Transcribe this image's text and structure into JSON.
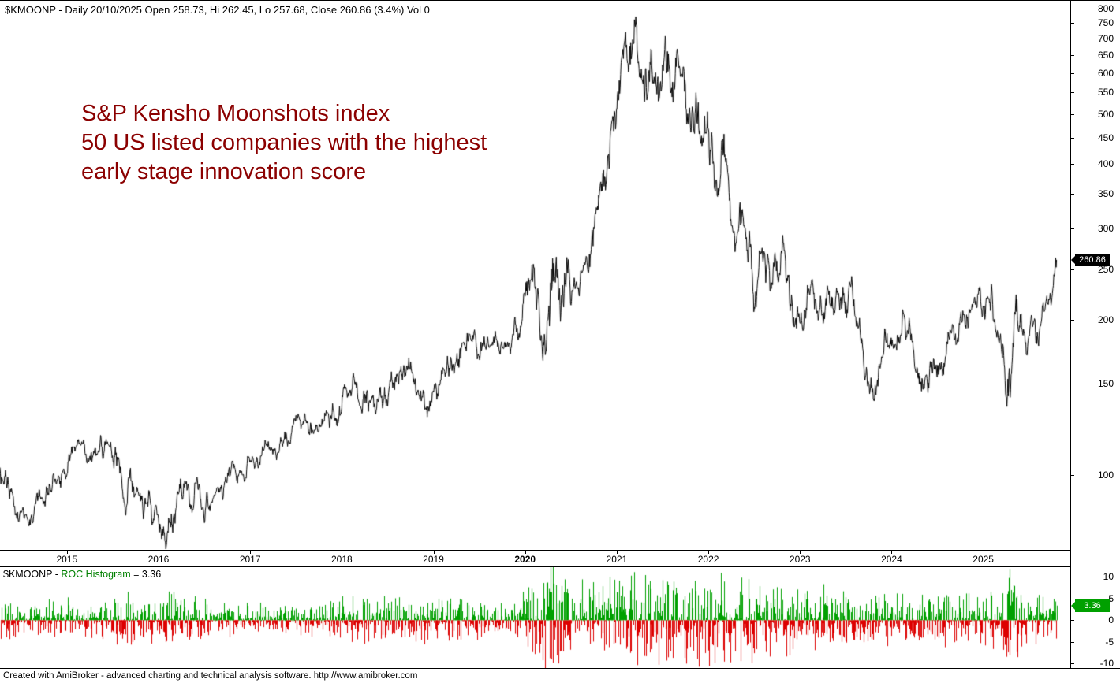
{
  "colors": {
    "line": "#000000",
    "annotation": "#8b0000",
    "roc_up": "#00a000",
    "roc_down": "#dd0000",
    "indicator_label_green": "#008000",
    "price_marker_bg": "#000000",
    "roc_marker_bg": "#00a000",
    "marker_text": "#ffffff"
  },
  "title_bar": {
    "text": "$KMOONP - Daily 20/10/2025 Open 258.73, Hi 262.45, Lo 257.68, Close 260.86 (3.4%) Vol 0"
  },
  "annotation": {
    "lines": [
      "S&P Kensho Moonshots index",
      "50 US listed companies with the highest",
      "early stage innovation score"
    ]
  },
  "price_axis": {
    "last_price_label": "260.86"
  },
  "roc_panel": {
    "title": {
      "symbol": "$KMOONP",
      "sep": " - ",
      "indicator": "ROC Histogram",
      "eq": " = ",
      "value": "3.36"
    },
    "marker_label": "3.36"
  },
  "status_bar": {
    "text": "Created with AmiBroker - advanced charting and technical analysis software. http://www.amibroker.com"
  },
  "chart_data": [
    {
      "type": "line",
      "symbol": "$KMOONP",
      "timeframe": "Daily",
      "date": "20/10/2025",
      "ohlc": {
        "open": 258.73,
        "high": 262.45,
        "low": 257.68,
        "close": 260.86,
        "change_pct": 3.4,
        "volume": 0
      },
      "yscale": "log",
      "ylim_log": [
        71.6,
        828
      ],
      "y_ticks": [
        800,
        750,
        700,
        650,
        600,
        550,
        500,
        450,
        400,
        350,
        300,
        250,
        200,
        150,
        100
      ],
      "x_ticks": [
        2015,
        2016,
        2017,
        2018,
        2019,
        2020,
        2021,
        2022,
        2023,
        2024,
        2025
      ],
      "x_bold_tick": 2020,
      "t_start": 2014.27,
      "t_end": 2025.8,
      "t_axis_end": 2025.95,
      "points": 2300,
      "last_price": 260.86,
      "grid": false,
      "legend": false,
      "series_keypoints": [
        [
          2014.27,
          100
        ],
        [
          2014.45,
          88
        ],
        [
          2014.57,
          83
        ],
        [
          2014.7,
          93
        ],
        [
          2014.85,
          97
        ],
        [
          2015.0,
          108
        ],
        [
          2015.17,
          117
        ],
        [
          2015.3,
          110
        ],
        [
          2015.45,
          112
        ],
        [
          2015.55,
          104
        ],
        [
          2015.64,
          88
        ],
        [
          2015.72,
          98
        ],
        [
          2015.82,
          90
        ],
        [
          2015.95,
          85
        ],
        [
          2016.08,
          76
        ],
        [
          2016.25,
          92
        ],
        [
          2016.4,
          96
        ],
        [
          2016.52,
          88
        ],
        [
          2016.7,
          99
        ],
        [
          2016.85,
          100
        ],
        [
          2017.0,
          104
        ],
        [
          2017.2,
          110
        ],
        [
          2017.4,
          118
        ],
        [
          2017.6,
          127
        ],
        [
          2017.75,
          123
        ],
        [
          2017.9,
          131
        ],
        [
          2018.0,
          139
        ],
        [
          2018.12,
          149
        ],
        [
          2018.22,
          134
        ],
        [
          2018.4,
          142
        ],
        [
          2018.55,
          154
        ],
        [
          2018.72,
          165
        ],
        [
          2018.85,
          149
        ],
        [
          2018.97,
          136
        ],
        [
          2019.1,
          152
        ],
        [
          2019.25,
          168
        ],
        [
          2019.37,
          179
        ],
        [
          2019.5,
          167
        ],
        [
          2019.65,
          181
        ],
        [
          2019.78,
          175
        ],
        [
          2019.9,
          193
        ],
        [
          2020.0,
          215
        ],
        [
          2020.1,
          252
        ],
        [
          2020.16,
          200
        ],
        [
          2020.22,
          168
        ],
        [
          2020.3,
          212
        ],
        [
          2020.4,
          238
        ],
        [
          2020.5,
          225
        ],
        [
          2020.6,
          248
        ],
        [
          2020.7,
          262
        ],
        [
          2020.8,
          310
        ],
        [
          2020.88,
          380
        ],
        [
          2020.95,
          450
        ],
        [
          2021.02,
          560
        ],
        [
          2021.1,
          755
        ],
        [
          2021.16,
          650
        ],
        [
          2021.21,
          710
        ],
        [
          2021.3,
          570
        ],
        [
          2021.38,
          610
        ],
        [
          2021.46,
          545
        ],
        [
          2021.54,
          625
        ],
        [
          2021.63,
          560
        ],
        [
          2021.72,
          585
        ],
        [
          2021.82,
          470
        ],
        [
          2021.92,
          425
        ],
        [
          2022.0,
          452
        ],
        [
          2022.1,
          352
        ],
        [
          2022.17,
          395
        ],
        [
          2022.28,
          305
        ],
        [
          2022.38,
          315
        ],
        [
          2022.5,
          237
        ],
        [
          2022.6,
          280
        ],
        [
          2022.7,
          227
        ],
        [
          2022.8,
          258
        ],
        [
          2022.92,
          200
        ],
        [
          2023.03,
          187
        ],
        [
          2023.14,
          218
        ],
        [
          2023.25,
          197
        ],
        [
          2023.35,
          214
        ],
        [
          2023.45,
          234
        ],
        [
          2023.55,
          216
        ],
        [
          2023.65,
          186
        ],
        [
          2023.75,
          149
        ],
        [
          2023.85,
          161
        ],
        [
          2023.95,
          174
        ],
        [
          2024.05,
          186
        ],
        [
          2024.14,
          196
        ],
        [
          2024.25,
          161
        ],
        [
          2024.34,
          153
        ],
        [
          2024.45,
          171
        ],
        [
          2024.55,
          164
        ],
        [
          2024.65,
          177
        ],
        [
          2024.75,
          191
        ],
        [
          2024.85,
          206
        ],
        [
          2024.93,
          226
        ],
        [
          2025.0,
          211
        ],
        [
          2025.08,
          221
        ],
        [
          2025.15,
          186
        ],
        [
          2025.22,
          151
        ],
        [
          2025.27,
          129
        ],
        [
          2025.35,
          166
        ],
        [
          2025.42,
          186
        ],
        [
          2025.49,
          178
        ],
        [
          2025.55,
          196
        ],
        [
          2025.6,
          189
        ],
        [
          2025.66,
          207
        ],
        [
          2025.71,
          227
        ],
        [
          2025.75,
          219
        ],
        [
          2025.8,
          260.86
        ]
      ],
      "volatility_keypoints": [
        [
          2014.27,
          0.01
        ],
        [
          2015.4,
          0.01
        ],
        [
          2015.7,
          0.015
        ],
        [
          2016.1,
          0.014
        ],
        [
          2016.6,
          0.009
        ],
        [
          2017.5,
          0.008
        ],
        [
          2018.05,
          0.012
        ],
        [
          2018.9,
          0.013
        ],
        [
          2019.5,
          0.01
        ],
        [
          2019.95,
          0.012
        ],
        [
          2020.12,
          0.028
        ],
        [
          2020.25,
          0.032
        ],
        [
          2020.5,
          0.018
        ],
        [
          2020.9,
          0.02
        ],
        [
          2021.15,
          0.024
        ],
        [
          2021.6,
          0.022
        ],
        [
          2022.1,
          0.024
        ],
        [
          2022.6,
          0.022
        ],
        [
          2023.1,
          0.016
        ],
        [
          2023.6,
          0.014
        ],
        [
          2024.2,
          0.014
        ],
        [
          2024.9,
          0.013
        ],
        [
          2025.15,
          0.018
        ],
        [
          2025.28,
          0.026
        ],
        [
          2025.45,
          0.013
        ],
        [
          2025.8,
          0.012
        ]
      ]
    },
    {
      "type": "bar",
      "name": "ROC Histogram",
      "last_value": 3.36,
      "y_ticks": [
        10,
        5,
        0,
        -5,
        -10
      ],
      "ylim": [
        -11,
        12.2
      ],
      "grid": false,
      "spike_events": [
        {
          "t": 2015.66,
          "value": -5.2
        },
        {
          "t": 2016.09,
          "value": -4.8
        },
        {
          "t": 2018.11,
          "value": -5.0
        },
        {
          "t": 2020.16,
          "value": -7.5
        },
        {
          "t": 2020.19,
          "value": -9.2
        },
        {
          "t": 2020.215,
          "value": -13.5
        },
        {
          "t": 2020.23,
          "value": 8.6
        },
        {
          "t": 2020.26,
          "value": 7.2
        },
        {
          "t": 2020.62,
          "value": 9.4
        },
        {
          "t": 2021.06,
          "value": 7.8
        },
        {
          "t": 2021.36,
          "value": -7.4
        },
        {
          "t": 2022.36,
          "value": 9.8
        },
        {
          "t": 2022.75,
          "value": 7.6
        },
        {
          "t": 2023.26,
          "value": 8.3
        },
        {
          "t": 2024.58,
          "value": -6.2
        },
        {
          "t": 2025.22,
          "value": -6.8
        },
        {
          "t": 2025.255,
          "value": -8.4
        },
        {
          "t": 2025.285,
          "value": 11.8
        }
      ]
    }
  ]
}
